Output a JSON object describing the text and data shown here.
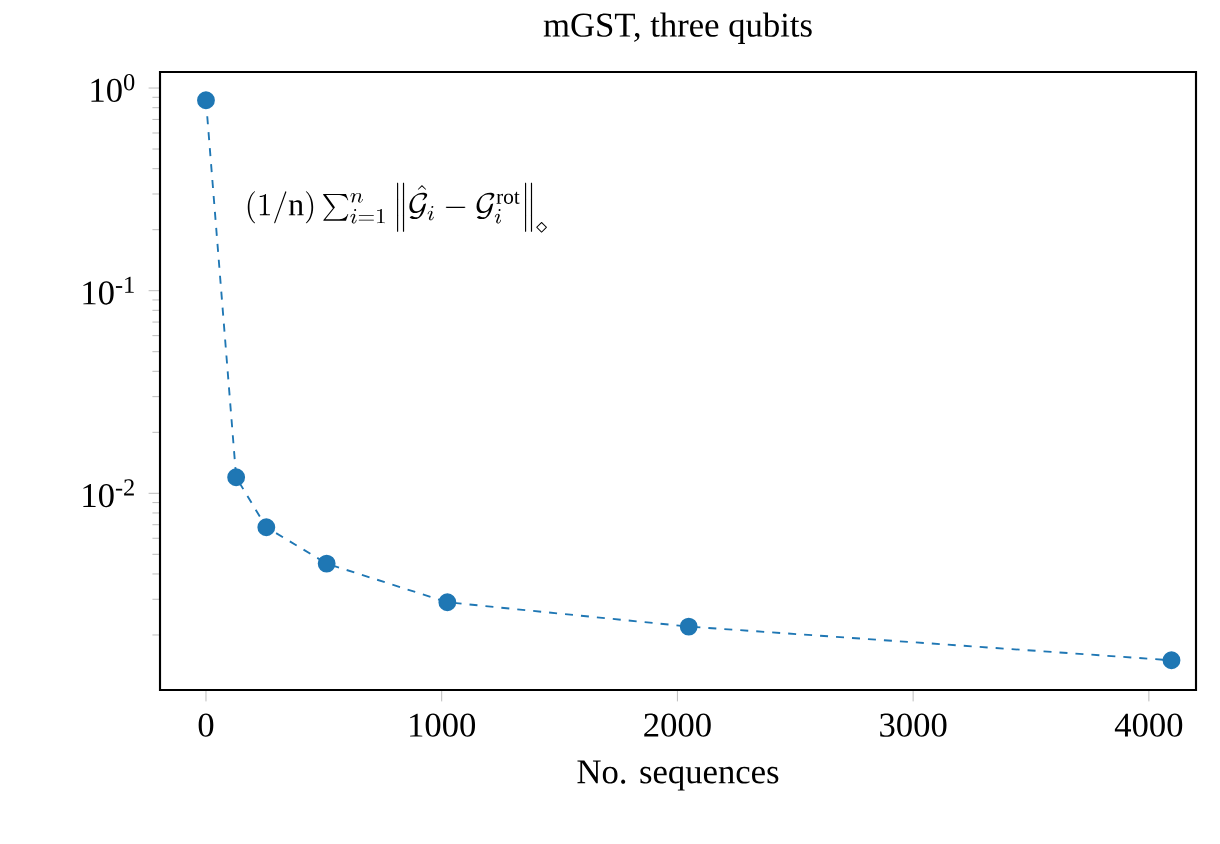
{
  "chart_data": {
    "type": "line",
    "title": "mGST, three qubits",
    "xlabel": "No. sequences",
    "x": [
      0,
      128,
      256,
      512,
      1024,
      2048,
      4096
    ],
    "series": [
      {
        "color": "#1f77b4",
        "values": [
          0.87,
          0.012,
          0.0068,
          0.0045,
          0.0029,
          0.0022,
          0.0015
        ]
      }
    ],
    "annotations": [
      "(1/\\mathrm{n})\\sum_{i=1}^{n} \\left\\Vert \\hat{\\mathcal{G}}_i - \\mathcal{G}_i^{\\mathrm{rot}}\\right\\Vert_\\diamond"
    ],
    "log": "y",
    "xlim": [
      -195,
      4200
    ],
    "ylim": [
      0.00107,
      1.2
    ],
    "xticks": [
      0,
      1000,
      2000,
      3000,
      4000
    ],
    "yticks": [
      {
        "value": 1,
        "label": "10$^{0}$"
      },
      {
        "value": 0.1,
        "label": "10$^{-1}$"
      },
      {
        "value": 0.01,
        "label": "10$^{-2}$"
      }
    ],
    "marker": "circle",
    "line_style": "dashed",
    "grid": false
  }
}
